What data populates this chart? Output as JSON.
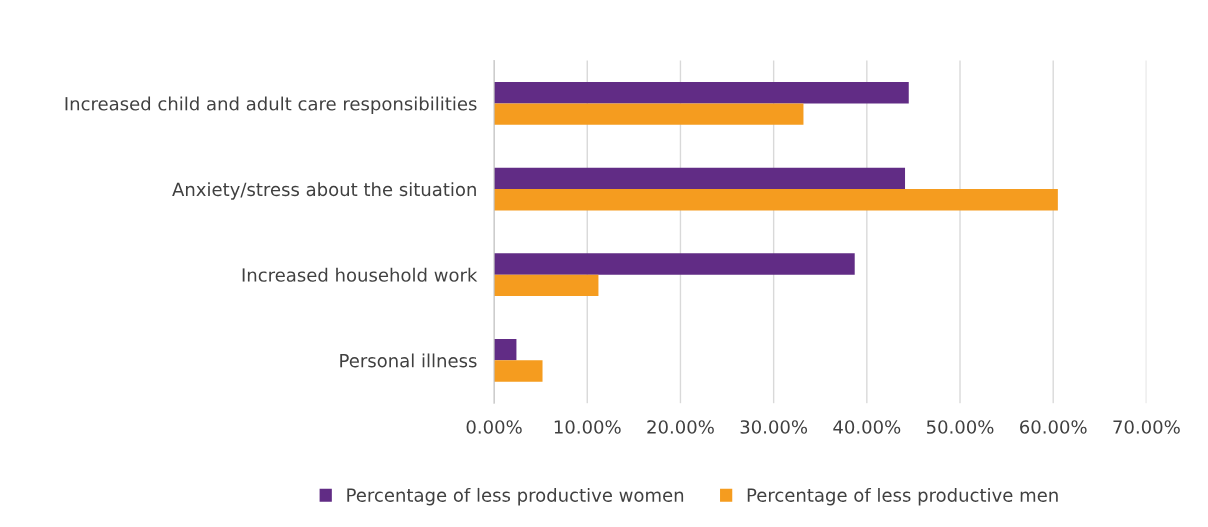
{
  "chart_data": {
    "type": "bar",
    "orientation": "horizontal",
    "categories": [
      "Increased child and adult care responsibilities",
      "Anxiety/stress about the situation",
      "Increased household work",
      "Personal illness"
    ],
    "series": [
      {
        "name": "Percentage of less productive women",
        "color": "#612c85",
        "values": [
          44.5,
          44.1,
          38.7,
          2.4
        ]
      },
      {
        "name": "Percentage of less productive men",
        "color": "#f59c1f",
        "values": [
          33.2,
          60.5,
          11.2,
          5.2
        ]
      }
    ],
    "xlim": [
      0,
      70
    ],
    "xticks": [
      {
        "value": 0,
        "label": "0.00%"
      },
      {
        "value": 10,
        "label": "10.00%"
      },
      {
        "value": 20,
        "label": "20.00%"
      },
      {
        "value": 30,
        "label": "30.00%"
      },
      {
        "value": 40,
        "label": "40.00%"
      },
      {
        "value": 50,
        "label": "50.00%"
      },
      {
        "value": 60,
        "label": "60.00%"
      },
      {
        "value": 70,
        "label": "70.00%"
      }
    ],
    "grid": "x",
    "legend": "bottom"
  }
}
